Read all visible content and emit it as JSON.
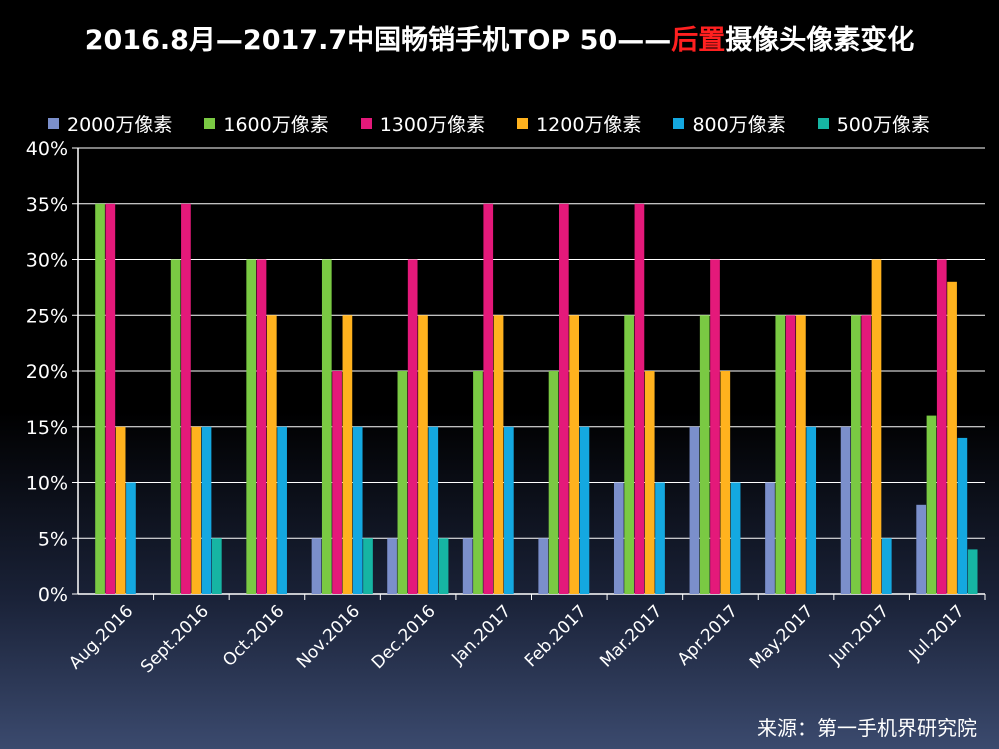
{
  "title_main": "2016.8月—2017.7中国畅销手机TOP 50——",
  "title_highlight": "后置",
  "title_tail": "摄像头像素变化",
  "source": "来源：第一手机界研究院",
  "chart_data": {
    "type": "bar",
    "title": "2016.8月—2017.7中国畅销手机TOP 50——后置摄像头像素变化",
    "xlabel": "",
    "ylabel": "",
    "ylim": [
      0,
      40
    ],
    "yticks": [
      "0%",
      "5%",
      "10%",
      "15%",
      "20%",
      "25%",
      "30%",
      "35%",
      "40%"
    ],
    "grid": true,
    "legend": "top",
    "categories": [
      "Aug.2016",
      "Sept.2016",
      "Oct.2016",
      "Nov.2016",
      "Dec.2016",
      "Jan.2017",
      "Feb.2017",
      "Mar.2017",
      "Apr.2017",
      "May.2017",
      "Jun.2017",
      "Jul.2017"
    ],
    "series": [
      {
        "name": "2000万像素",
        "color": "#7b8fcb",
        "values": [
          0,
          0,
          0,
          5,
          5,
          5,
          5,
          10,
          15,
          10,
          15,
          8
        ]
      },
      {
        "name": "1600万像素",
        "color": "#7ac943",
        "values": [
          35,
          30,
          30,
          30,
          20,
          20,
          20,
          25,
          25,
          25,
          25,
          16
        ]
      },
      {
        "name": "1300万像素",
        "color": "#e4197a",
        "values": [
          35,
          35,
          30,
          20,
          30,
          35,
          35,
          35,
          30,
          25,
          25,
          30
        ]
      },
      {
        "name": "1200万像素",
        "color": "#ffb21e",
        "values": [
          15,
          15,
          25,
          25,
          25,
          25,
          25,
          20,
          20,
          25,
          30,
          28
        ]
      },
      {
        "name": "800万像素",
        "color": "#14a8e0",
        "values": [
          10,
          15,
          15,
          15,
          15,
          15,
          15,
          10,
          10,
          15,
          5,
          14
        ]
      },
      {
        "name": "500万像素",
        "color": "#16b5a3",
        "values": [
          0,
          5,
          0,
          5,
          5,
          0,
          0,
          0,
          0,
          0,
          0,
          4
        ]
      }
    ]
  }
}
